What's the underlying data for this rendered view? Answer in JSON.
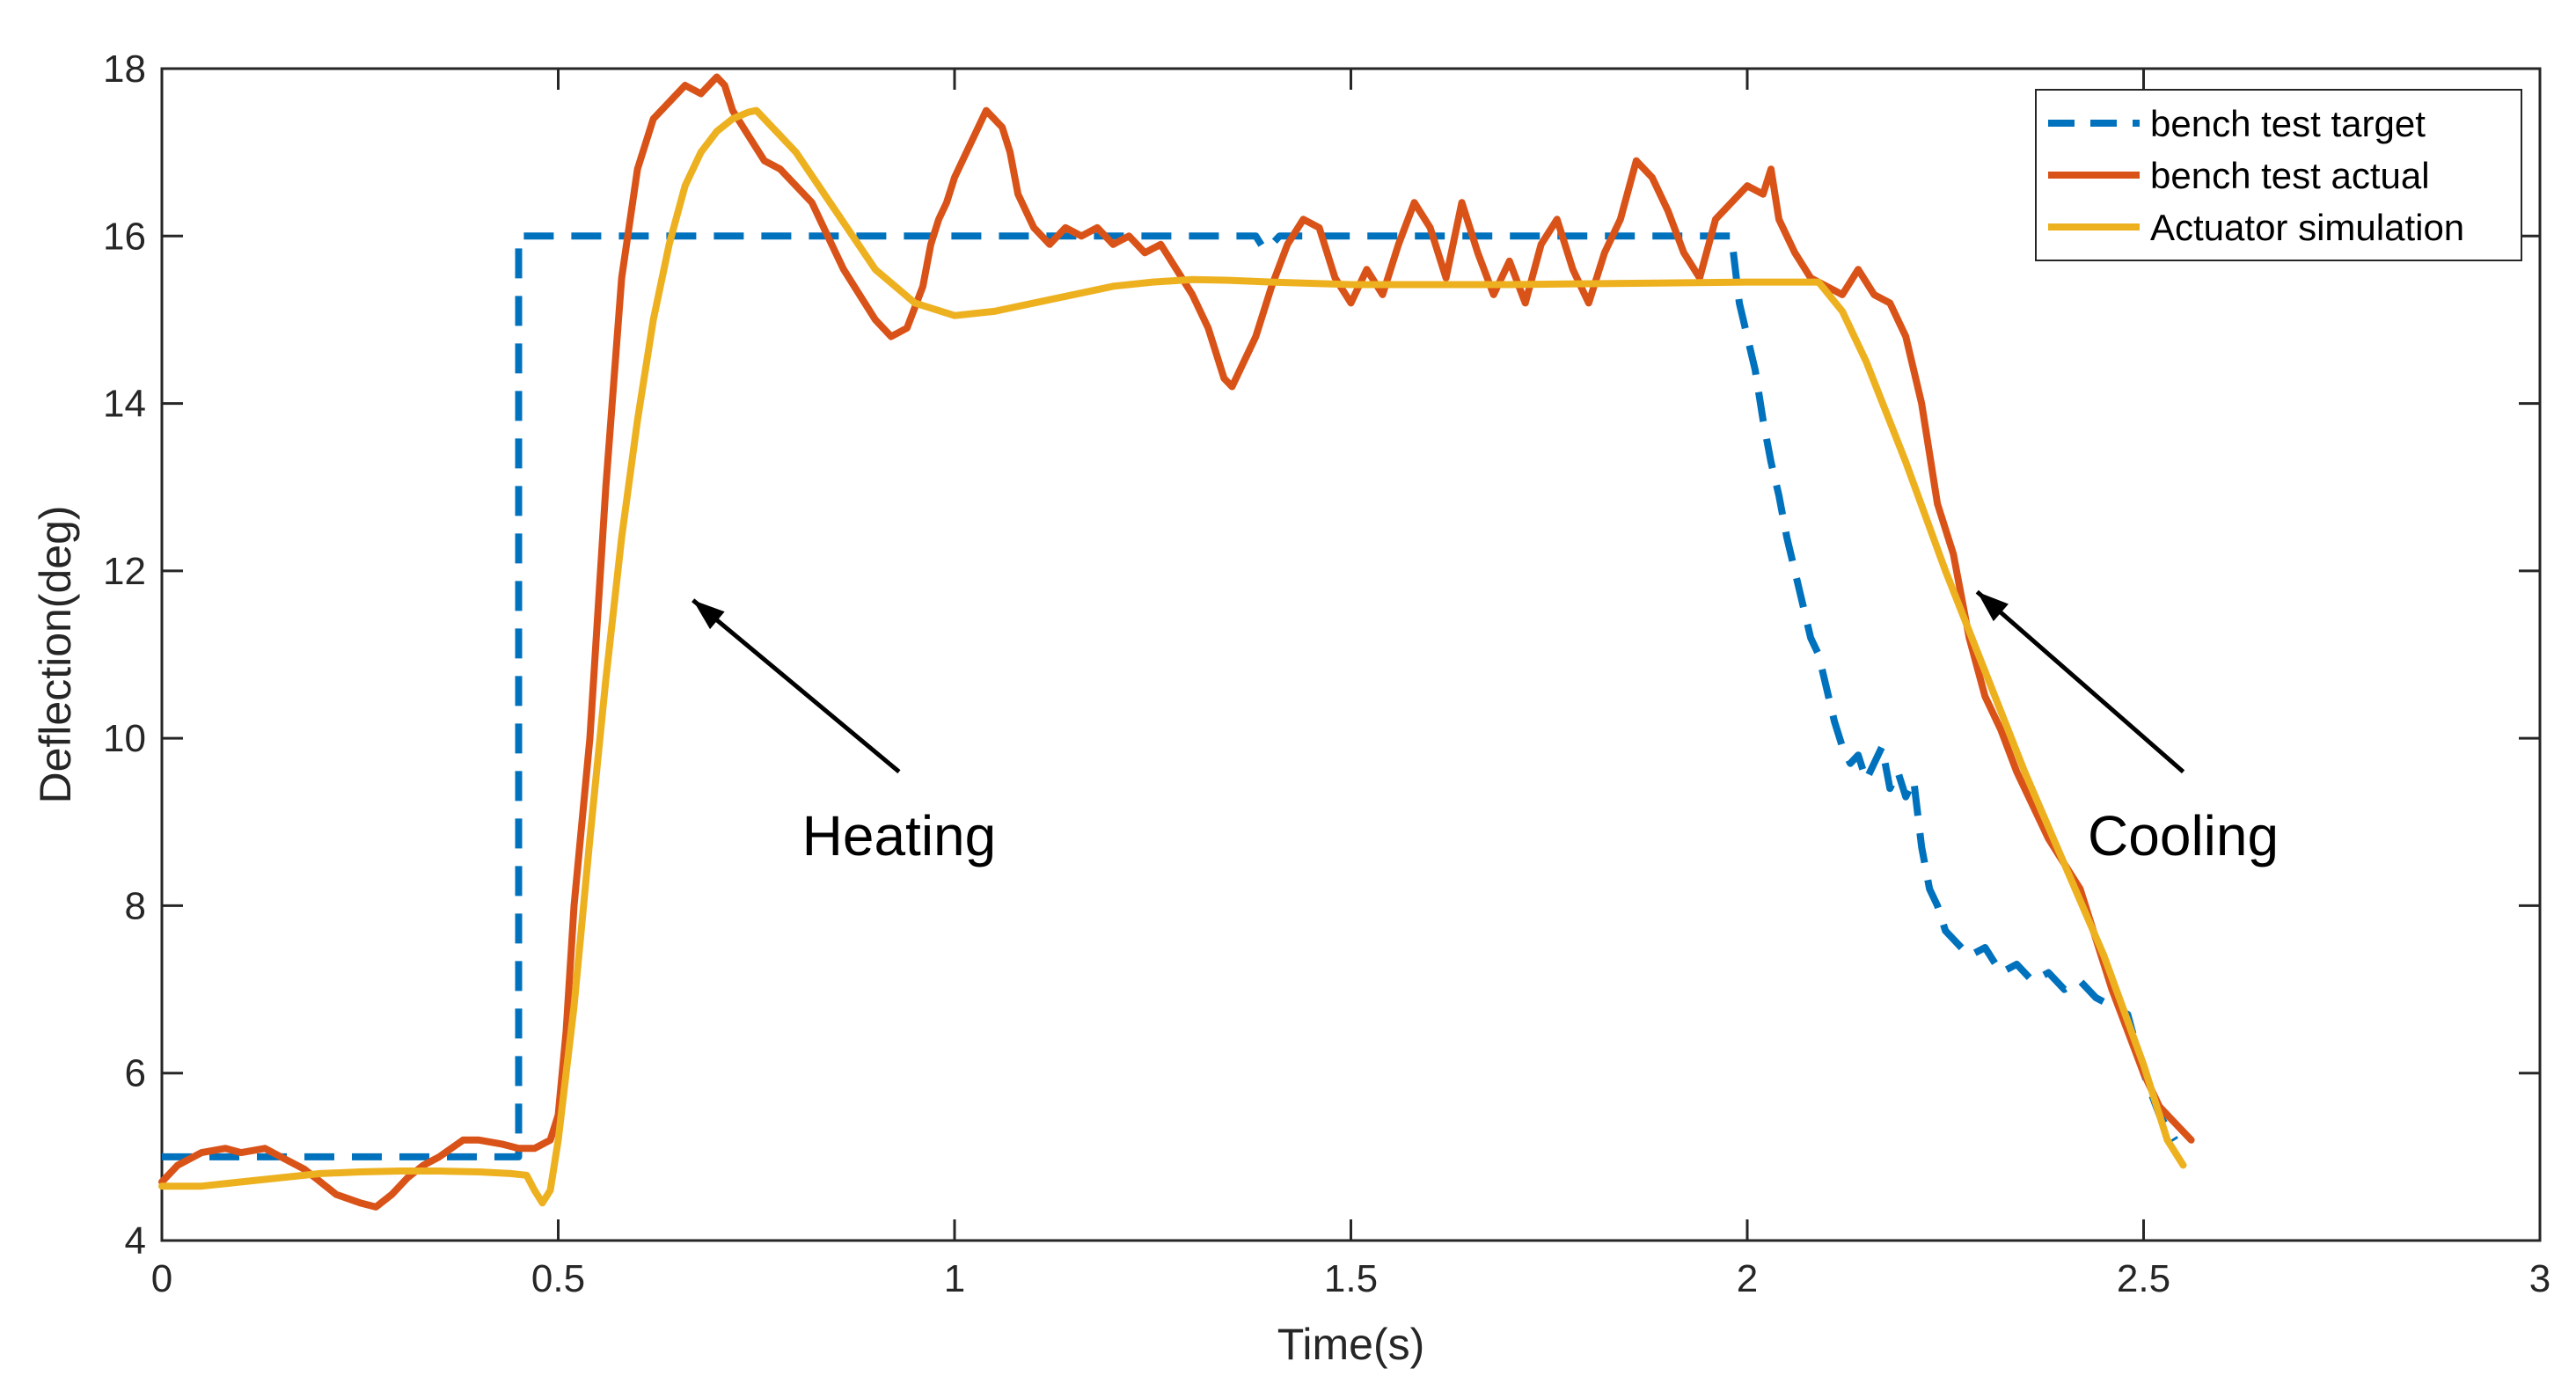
{
  "chart_data": {
    "type": "line",
    "title": "",
    "xlabel": "Time(s)",
    "ylabel": "Deflection(deg)",
    "xlim": [
      0,
      3
    ],
    "ylim": [
      4,
      18
    ],
    "xticks": [
      0,
      0.5,
      1,
      1.5,
      2,
      2.5,
      3
    ],
    "xtick_labels": [
      "0",
      "0.5",
      "1",
      "1.5",
      "2",
      "2.5",
      "3"
    ],
    "yticks": [
      4,
      6,
      8,
      10,
      12,
      14,
      16,
      18
    ],
    "ytick_labels": [
      "4",
      "6",
      "8",
      "10",
      "12",
      "14",
      "16",
      "18"
    ],
    "grid": false,
    "legend_position": "top-right",
    "series": [
      {
        "name": "bench test target",
        "color": "#0072BD",
        "style": "dashed",
        "x": [
          0,
          0.45,
          0.45,
          1.38,
          1.39,
          1.4,
          1.41,
          1.98,
          1.99,
          2.0,
          2.01,
          2.02,
          2.03,
          2.04,
          2.05,
          2.06,
          2.07,
          2.08,
          2.09,
          2.1,
          2.11,
          2.12,
          2.13,
          2.14,
          2.15,
          2.16,
          2.17,
          2.18,
          2.19,
          2.2,
          2.21,
          2.22,
          2.23,
          2.24,
          2.25,
          2.26,
          2.28,
          2.3,
          2.32,
          2.34,
          2.36,
          2.38,
          2.4,
          2.42,
          2.44,
          2.46,
          2.48,
          2.5,
          2.52,
          2.54
        ],
        "y": [
          5.0,
          5.0,
          16.0,
          16.0,
          15.85,
          15.9,
          16.0,
          16.0,
          15.2,
          14.8,
          14.4,
          13.8,
          13.3,
          12.9,
          12.4,
          12.0,
          11.6,
          11.2,
          11.0,
          10.6,
          10.2,
          9.9,
          9.7,
          9.8,
          9.5,
          9.7,
          9.9,
          9.4,
          9.6,
          9.3,
          9.5,
          8.7,
          8.2,
          8.0,
          7.7,
          7.6,
          7.4,
          7.5,
          7.2,
          7.3,
          7.1,
          7.2,
          7.0,
          7.1,
          6.9,
          6.8,
          6.7,
          6.0,
          5.5,
          5.2
        ]
      },
      {
        "name": "bench test actual",
        "color": "#D95319",
        "style": "solid",
        "x": [
          0,
          0.02,
          0.05,
          0.08,
          0.1,
          0.13,
          0.15,
          0.18,
          0.2,
          0.22,
          0.25,
          0.27,
          0.29,
          0.31,
          0.33,
          0.35,
          0.38,
          0.4,
          0.43,
          0.45,
          0.47,
          0.49,
          0.5,
          0.51,
          0.52,
          0.54,
          0.56,
          0.58,
          0.6,
          0.62,
          0.64,
          0.66,
          0.68,
          0.7,
          0.71,
          0.72,
          0.74,
          0.76,
          0.78,
          0.8,
          0.82,
          0.84,
          0.86,
          0.88,
          0.9,
          0.92,
          0.94,
          0.96,
          0.97,
          0.98,
          0.99,
          1.0,
          1.02,
          1.04,
          1.06,
          1.07,
          1.08,
          1.1,
          1.12,
          1.14,
          1.16,
          1.18,
          1.2,
          1.22,
          1.24,
          1.26,
          1.28,
          1.3,
          1.32,
          1.34,
          1.35,
          1.36,
          1.38,
          1.4,
          1.42,
          1.44,
          1.46,
          1.48,
          1.5,
          1.52,
          1.54,
          1.56,
          1.58,
          1.6,
          1.62,
          1.64,
          1.66,
          1.68,
          1.7,
          1.72,
          1.74,
          1.76,
          1.78,
          1.8,
          1.82,
          1.84,
          1.86,
          1.88,
          1.9,
          1.92,
          1.94,
          1.96,
          1.98,
          2.0,
          2.02,
          2.03,
          2.04,
          2.06,
          2.08,
          2.1,
          2.12,
          2.14,
          2.16,
          2.18,
          2.2,
          2.22,
          2.24,
          2.26,
          2.28,
          2.3,
          2.32,
          2.34,
          2.36,
          2.38,
          2.4,
          2.42,
          2.44,
          2.46,
          2.48,
          2.5,
          2.52,
          2.54,
          2.56
        ],
        "y": [
          4.7,
          4.9,
          5.05,
          5.1,
          5.05,
          5.1,
          5.0,
          4.85,
          4.7,
          4.55,
          4.45,
          4.4,
          4.55,
          4.75,
          4.9,
          5.0,
          5.2,
          5.2,
          5.15,
          5.1,
          5.1,
          5.2,
          5.5,
          6.5,
          8.0,
          10.0,
          13.0,
          15.5,
          16.8,
          17.4,
          17.6,
          17.8,
          17.7,
          17.9,
          17.8,
          17.5,
          17.2,
          16.9,
          16.8,
          16.6,
          16.4,
          16.0,
          15.6,
          15.3,
          15.0,
          14.8,
          14.9,
          15.4,
          15.9,
          16.2,
          16.4,
          16.7,
          17.1,
          17.5,
          17.3,
          17.0,
          16.5,
          16.1,
          15.9,
          16.1,
          16.0,
          16.1,
          15.9,
          16.0,
          15.8,
          15.9,
          15.6,
          15.3,
          14.9,
          14.3,
          14.2,
          14.4,
          14.8,
          15.4,
          15.9,
          16.2,
          16.1,
          15.5,
          15.2,
          15.6,
          15.3,
          15.9,
          16.4,
          16.1,
          15.5,
          16.4,
          15.8,
          15.3,
          15.7,
          15.2,
          15.9,
          16.2,
          15.6,
          15.2,
          15.8,
          16.2,
          16.9,
          16.7,
          16.3,
          15.8,
          15.5,
          16.2,
          16.4,
          16.6,
          16.5,
          16.8,
          16.2,
          15.8,
          15.5,
          15.4,
          15.3,
          15.6,
          15.3,
          15.2,
          14.8,
          14.0,
          12.8,
          12.2,
          11.2,
          10.5,
          10.1,
          9.6,
          9.2,
          8.8,
          8.5,
          8.2,
          7.6,
          7.0,
          6.5,
          6.0,
          5.6,
          5.4,
          5.2
        ]
      },
      {
        "name": "Actuator simulation",
        "color": "#EDB120",
        "style": "solid",
        "x": [
          0,
          0.05,
          0.1,
          0.15,
          0.2,
          0.25,
          0.3,
          0.35,
          0.4,
          0.44,
          0.46,
          0.47,
          0.48,
          0.49,
          0.5,
          0.52,
          0.54,
          0.56,
          0.58,
          0.6,
          0.62,
          0.64,
          0.66,
          0.68,
          0.7,
          0.72,
          0.74,
          0.75,
          0.77,
          0.8,
          0.85,
          0.9,
          0.95,
          1.0,
          1.05,
          1.1,
          1.15,
          1.2,
          1.25,
          1.3,
          1.35,
          1.4,
          1.5,
          1.6,
          1.7,
          1.8,
          1.9,
          2.0,
          2.05,
          2.09,
          2.12,
          2.15,
          2.2,
          2.25,
          2.3,
          2.35,
          2.4,
          2.45,
          2.5,
          2.53,
          2.55
        ],
        "y": [
          4.65,
          4.65,
          4.7,
          4.75,
          4.8,
          4.82,
          4.83,
          4.83,
          4.82,
          4.8,
          4.78,
          4.6,
          4.45,
          4.6,
          5.2,
          6.8,
          8.8,
          10.7,
          12.4,
          13.8,
          15.0,
          15.9,
          16.6,
          17.0,
          17.25,
          17.4,
          17.48,
          17.5,
          17.3,
          17.0,
          16.3,
          15.6,
          15.2,
          15.05,
          15.1,
          15.2,
          15.3,
          15.4,
          15.45,
          15.48,
          15.47,
          15.45,
          15.42,
          15.42,
          15.42,
          15.43,
          15.44,
          15.45,
          15.45,
          15.45,
          15.1,
          14.5,
          13.3,
          12.0,
          10.8,
          9.6,
          8.5,
          7.4,
          6.1,
          5.2,
          4.9
        ]
      }
    ],
    "annotations": [
      {
        "text": "Heating",
        "xy": [
          0.67,
          11.65
        ],
        "xytext": [
          0.93,
          9.6
        ]
      },
      {
        "text": "Cooling",
        "xy": [
          2.29,
          11.75
        ],
        "xytext": [
          2.55,
          9.6
        ]
      }
    ]
  }
}
